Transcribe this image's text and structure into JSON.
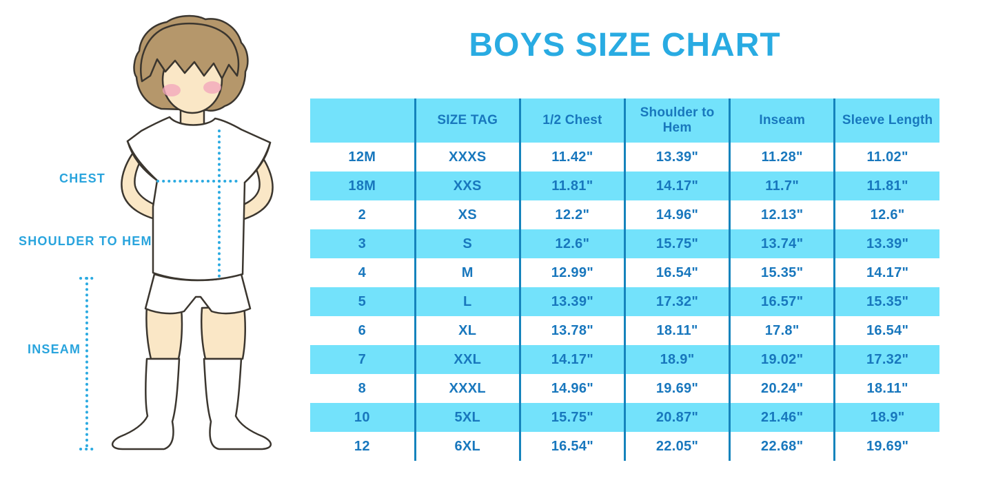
{
  "title": "BOYS SIZE CHART",
  "figure": {
    "labels": {
      "chest": "CHEST",
      "shoulder_to_hem": "SHOULDER TO HEM",
      "inseam": "INSEAM"
    }
  },
  "colors": {
    "title_accent": "#29ABE2",
    "measure_label_text": "#29A4DD",
    "table_text": "#1877BD",
    "row_stripe_cyan": "#73E2FB",
    "column_divider": "#1583BC",
    "dotted_measure_line": "#2BAAE1",
    "hair": "#B5976B",
    "skin": "#FAE7C6",
    "blush": "#F2A9BC",
    "outline": "#3B362F"
  },
  "chart_data": {
    "type": "table",
    "title": "BOYS SIZE CHART",
    "columns": [
      "",
      "SIZE TAG",
      "1/2 Chest",
      "Shoulder to Hem",
      "Inseam",
      "Sleeve Length"
    ],
    "rows": [
      [
        "12M",
        "XXXS",
        "11.42\"",
        "13.39\"",
        "11.28\"",
        "11.02\""
      ],
      [
        "18M",
        "XXS",
        "11.81\"",
        "14.17\"",
        "11.7\"",
        "11.81\""
      ],
      [
        "2",
        "XS",
        "12.2\"",
        "14.96\"",
        "12.13\"",
        "12.6\""
      ],
      [
        "3",
        "S",
        "12.6\"",
        "15.75\"",
        "13.74\"",
        "13.39\""
      ],
      [
        "4",
        "M",
        "12.99\"",
        "16.54\"",
        "15.35\"",
        "14.17\""
      ],
      [
        "5",
        "L",
        "13.39\"",
        "17.32\"",
        "16.57\"",
        "15.35\""
      ],
      [
        "6",
        "XL",
        "13.78\"",
        "18.11\"",
        "17.8\"",
        "16.54\""
      ],
      [
        "7",
        "XXL",
        "14.17\"",
        "18.9\"",
        "19.02\"",
        "17.32\""
      ],
      [
        "8",
        "XXXL",
        "14.96\"",
        "19.69\"",
        "20.24\"",
        "18.11\""
      ],
      [
        "10",
        "5XL",
        "15.75\"",
        "20.87\"",
        "21.46\"",
        "18.9\""
      ],
      [
        "12",
        "6XL",
        "16.54\"",
        "22.05\"",
        "22.68\"",
        "19.69\""
      ]
    ],
    "layout": {
      "striping": "header and alternate rows cyan, others white",
      "grid": "vertical dividers only"
    }
  }
}
